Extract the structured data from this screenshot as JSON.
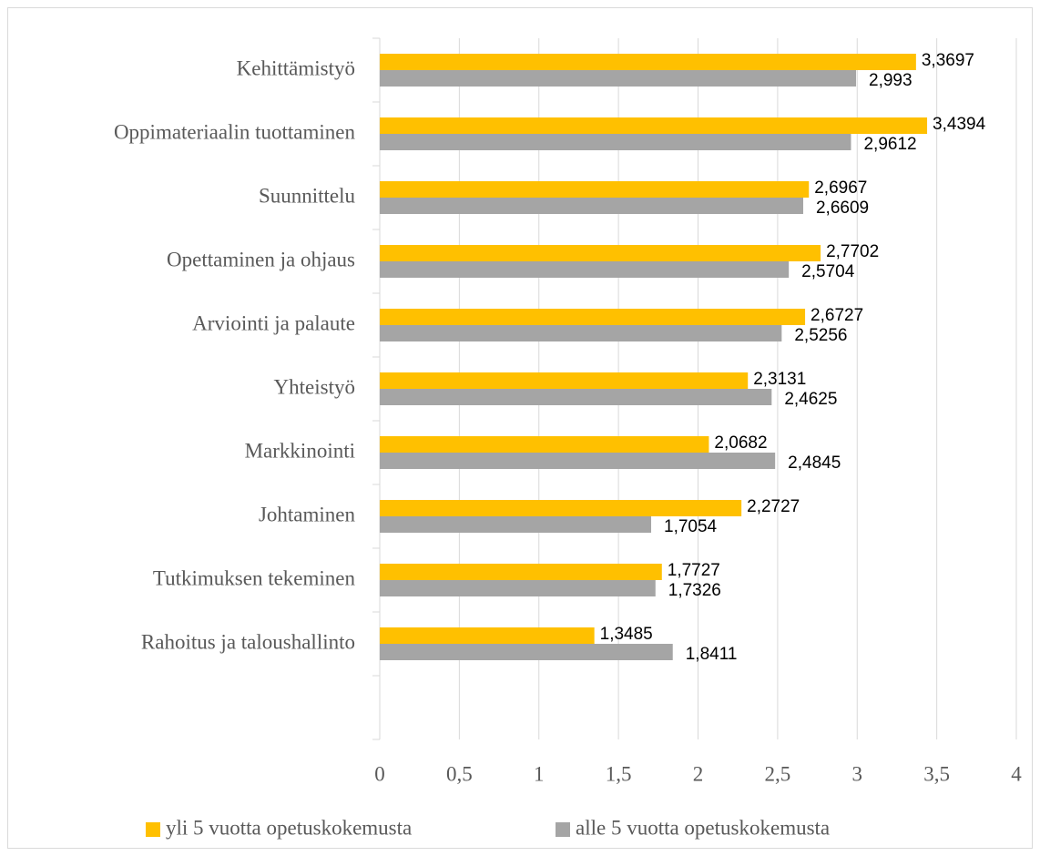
{
  "chart_data": {
    "type": "bar",
    "orientation": "horizontal",
    "categories": [
      "Kehittämistyö",
      "Oppimateriaalin tuottaminen",
      "Suunnittelu",
      "Opettaminen ja ohjaus",
      "Arviointi ja palaute",
      "Yhteistyö",
      "Markkinointi",
      "Johtaminen",
      "Tutkimuksen tekeminen",
      "Rahoitus ja taloushallinto",
      null
    ],
    "series": [
      {
        "name": "yli 5 vuotta opetuskokemusta",
        "color": "#ffc000",
        "values": [
          3.3697,
          3.4394,
          2.6967,
          2.7702,
          2.6727,
          2.3131,
          2.0682,
          2.2727,
          1.7727,
          1.3485,
          null
        ],
        "value_labels": [
          "3,3697",
          "3,4394",
          "2,6967",
          "2,7702",
          "2,6727",
          "2,3131",
          "2,0682",
          "2,2727",
          "1,7727",
          "1,3485",
          null
        ]
      },
      {
        "name": "alle 5 vuotta opetuskokemusta",
        "color": "#a5a5a5",
        "values": [
          2.993,
          2.9612,
          2.6609,
          2.5704,
          2.5256,
          2.4625,
          2.4845,
          1.7054,
          1.7326,
          1.8411,
          null
        ],
        "value_labels": [
          "2,993",
          "2,9612",
          "2,6609",
          "2,5704",
          "2,5256",
          "2,4625",
          "2,4845",
          "1,7054",
          "1,7326",
          "1,8411",
          null
        ]
      }
    ],
    "xlim": [
      0,
      4
    ],
    "xticks": [
      0,
      {
        "value": 0.5,
        "label": "0,5"
      },
      1,
      {
        "value": 1.5,
        "label": "1,5"
      },
      2,
      {
        "value": 2.5,
        "label": "2,5"
      },
      3,
      {
        "value": 3.5,
        "label": "3,5"
      },
      4
    ],
    "grid": true,
    "legend": "bottom"
  }
}
